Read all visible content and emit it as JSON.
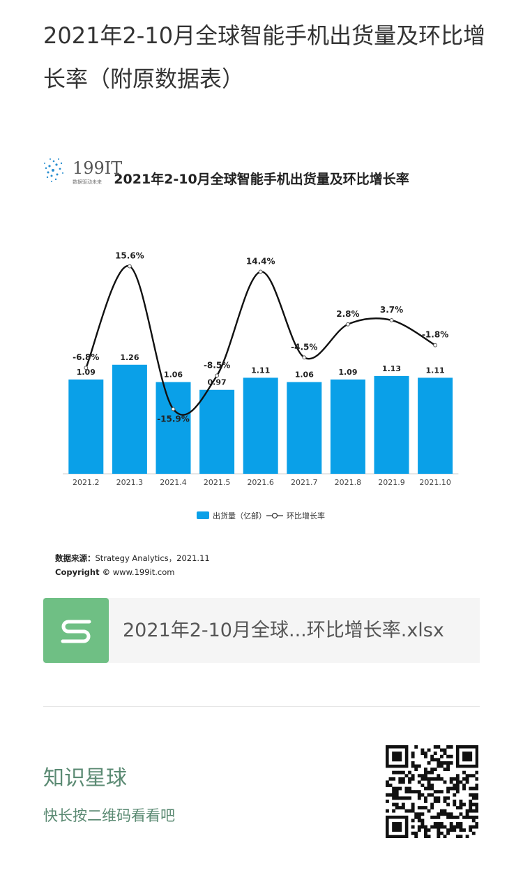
{
  "post": {
    "title": "2021年2-10月全球智能手机出货量及环比增长率（附原数据表）"
  },
  "chart_data": {
    "type": "bar",
    "title": "2021年2-10月全球智能手机出货量及环比增长率",
    "categories": [
      "2021.2",
      "2021.3",
      "2021.4",
      "2021.5",
      "2021.6",
      "2021.7",
      "2021.8",
      "2021.9",
      "2021.10"
    ],
    "series": [
      {
        "name": "出货量（亿部）",
        "type": "bar",
        "color": "#0aa0e8",
        "values": [
          1.09,
          1.26,
          1.06,
          0.97,
          1.11,
          1.06,
          1.09,
          1.13,
          1.11
        ],
        "labels": [
          "1.09",
          "1.26",
          "1.06",
          "0.97",
          "1.11",
          "1.06",
          "1.09",
          "1.13",
          "1.11"
        ]
      },
      {
        "name": "环比增长率",
        "type": "line",
        "color": "#111111",
        "values": [
          -6.8,
          15.6,
          -15.9,
          -8.5,
          14.4,
          -4.5,
          2.8,
          3.7,
          -1.8
        ],
        "labels": [
          "-6.8%",
          "15.6%",
          "-15.9%",
          "-8.5%",
          "14.4%",
          "-4.5%",
          "2.8%",
          "3.7%",
          "-1.8%"
        ]
      }
    ],
    "legend_position": "bottom-center",
    "grid": false
  },
  "source": {
    "label": "数据来源：",
    "text": "Strategy Analytics，2021.11",
    "copyright_label": "Copyright ©",
    "copyright_text": "www.199it.com"
  },
  "brand": {
    "name": "199IT",
    "tagline": "数据驱动未来"
  },
  "attachment": {
    "file_name": "2021年2-10月全球...环比增长率.xlsx",
    "icon": "spreadsheet-s-icon",
    "icon_color": "#6fbf84"
  },
  "footer": {
    "title": "知识星球",
    "subtitle": "快长按二维码看看吧",
    "qr": "qr-code"
  }
}
